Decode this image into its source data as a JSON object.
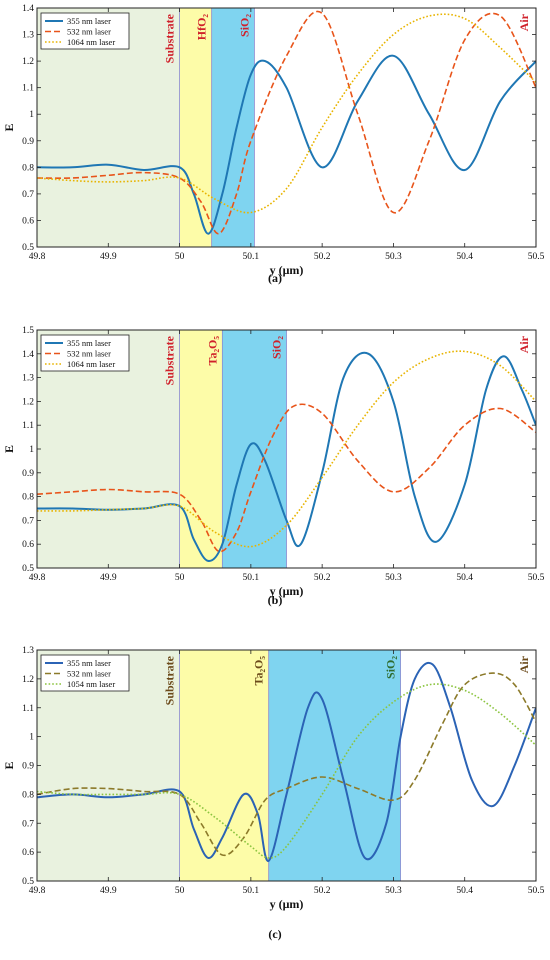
{
  "colors": {
    "laser355": "#1f77b4",
    "laser532": "#e8541a",
    "laser532_alt": "#8c7a2a",
    "laser1064": "#e8b400",
    "substrate_bg": "#e9f2df",
    "layer1_bg": "#fdfca8",
    "sio2_bg": "#7fd4f0",
    "region_text_red": "#d0202a",
    "region_text_dark": "#6b4a1a"
  },
  "chart_data": [
    {
      "type": "line",
      "panel_label": "(a)",
      "xlabel": "y (μm)",
      "ylabel": "E",
      "xlim": [
        49.8,
        50.5
      ],
      "ylim": [
        0.5,
        1.4
      ],
      "x_ticks": [
        "49.8",
        "49.9",
        "50",
        "50.1",
        "50.2",
        "50.3",
        "50.4",
        "50.5"
      ],
      "y_ticks": [
        "0.5",
        "0.6",
        "0.7",
        "0.8",
        "0.9",
        "1",
        "1.1",
        "1.2",
        "1.3",
        "1.4"
      ],
      "regions": [
        {
          "name": "Substrate",
          "label": "Substrate",
          "start": 49.8,
          "end": 50.0,
          "color": "#e9f2df",
          "text_color": "#d0202a"
        },
        {
          "name": "HfO2",
          "label": "HfO₂",
          "start": 50.0,
          "end": 50.045,
          "color": "#fdfca8",
          "text_color": "#d0202a"
        },
        {
          "name": "SiO2",
          "label": "SiO₂",
          "start": 50.045,
          "end": 50.105,
          "color": "#7fd4f0",
          "text_color": "#d0202a"
        },
        {
          "name": "Air",
          "label": "Air",
          "start": 50.105,
          "end": 50.5,
          "color": "#ffffff",
          "text_color": "#d0202a"
        }
      ],
      "legend": {
        "placement": "top-left"
      },
      "series": [
        {
          "name": "355 nm laser",
          "style": "solid",
          "color": "#1f77b4",
          "x": [
            49.8,
            49.85,
            49.9,
            49.95,
            50.0,
            50.02,
            50.04,
            50.06,
            50.08,
            50.1,
            50.12,
            50.15,
            50.2,
            50.25,
            50.3,
            50.35,
            50.4,
            50.45,
            50.5
          ],
          "y": [
            0.8,
            0.8,
            0.81,
            0.79,
            0.8,
            0.7,
            0.55,
            0.7,
            0.95,
            1.15,
            1.2,
            1.1,
            0.8,
            1.05,
            1.22,
            1.0,
            0.79,
            1.05,
            1.2
          ]
        },
        {
          "name": "532 nm laser",
          "style": "dashed",
          "color": "#e8541a",
          "x": [
            49.8,
            49.85,
            49.9,
            49.95,
            50.0,
            50.03,
            50.055,
            50.08,
            50.1,
            50.15,
            50.2,
            50.25,
            50.3,
            50.35,
            50.4,
            50.45,
            50.5
          ],
          "y": [
            0.76,
            0.76,
            0.77,
            0.78,
            0.76,
            0.67,
            0.55,
            0.7,
            0.9,
            1.22,
            1.38,
            1.0,
            0.63,
            0.9,
            1.28,
            1.37,
            1.1
          ]
        },
        {
          "name": "1064 nm laser",
          "style": "dotted",
          "color": "#e8b400",
          "x": [
            49.8,
            49.85,
            49.9,
            49.95,
            50.0,
            50.05,
            50.1,
            50.15,
            50.2,
            50.25,
            50.3,
            50.35,
            50.4,
            50.45,
            50.5
          ],
          "y": [
            0.76,
            0.75,
            0.745,
            0.75,
            0.76,
            0.68,
            0.63,
            0.72,
            0.95,
            1.15,
            1.3,
            1.37,
            1.36,
            1.25,
            1.12
          ]
        }
      ]
    },
    {
      "type": "line",
      "panel_label": "(b)",
      "xlabel": "y (μm)",
      "ylabel": "E",
      "xlim": [
        49.8,
        50.5
      ],
      "ylim": [
        0.5,
        1.5
      ],
      "x_ticks": [
        "49.8",
        "49.9",
        "50",
        "50.1",
        "50.2",
        "50.3",
        "50.4",
        "50.5"
      ],
      "y_ticks": [
        "0.5",
        "0.6",
        "0.7",
        "0.8",
        "0.9",
        "1",
        "1.1",
        "1.2",
        "1.3",
        "1.4",
        "1.5"
      ],
      "regions": [
        {
          "name": "Substrate",
          "label": "Substrate",
          "start": 49.8,
          "end": 50.0,
          "color": "#e9f2df",
          "text_color": "#d0202a"
        },
        {
          "name": "Ta2O5",
          "label": "Ta₂O₅",
          "start": 50.0,
          "end": 50.06,
          "color": "#fdfca8",
          "text_color": "#d0202a"
        },
        {
          "name": "SiO2",
          "label": "SiO₂",
          "start": 50.06,
          "end": 50.15,
          "color": "#7fd4f0",
          "text_color": "#d0202a"
        },
        {
          "name": "Air",
          "label": "Air",
          "start": 50.15,
          "end": 50.5,
          "color": "#ffffff",
          "text_color": "#d0202a"
        }
      ],
      "legend": {
        "placement": "top-left"
      },
      "series": [
        {
          "name": "355 nm laser",
          "style": "solid",
          "color": "#1f77b4",
          "x": [
            49.8,
            49.85,
            49.9,
            49.95,
            50.0,
            50.02,
            50.04,
            50.06,
            50.08,
            50.1,
            50.12,
            50.15,
            50.17,
            50.2,
            50.23,
            50.265,
            50.3,
            50.33,
            50.36,
            50.4,
            50.43,
            50.455,
            50.48,
            50.5
          ],
          "y": [
            0.75,
            0.75,
            0.745,
            0.75,
            0.76,
            0.62,
            0.53,
            0.6,
            0.85,
            1.02,
            0.95,
            0.7,
            0.6,
            0.9,
            1.3,
            1.4,
            1.2,
            0.8,
            0.61,
            0.85,
            1.25,
            1.39,
            1.25,
            1.1
          ]
        },
        {
          "name": "532 nm laser",
          "style": "dashed",
          "color": "#e8541a",
          "x": [
            49.8,
            49.85,
            49.9,
            49.95,
            50.0,
            50.03,
            50.055,
            50.08,
            50.1,
            50.13,
            50.16,
            50.2,
            50.25,
            50.3,
            50.35,
            50.4,
            50.45,
            50.5
          ],
          "y": [
            0.81,
            0.82,
            0.83,
            0.82,
            0.81,
            0.7,
            0.57,
            0.65,
            0.82,
            1.05,
            1.18,
            1.15,
            0.95,
            0.82,
            0.92,
            1.1,
            1.17,
            1.07
          ]
        },
        {
          "name": "1064 nm laser",
          "style": "dotted",
          "color": "#e8b400",
          "x": [
            49.8,
            49.85,
            49.9,
            49.95,
            50.0,
            50.05,
            50.1,
            50.15,
            50.2,
            50.25,
            50.3,
            50.35,
            50.4,
            50.45,
            50.5
          ],
          "y": [
            0.74,
            0.74,
            0.745,
            0.75,
            0.76,
            0.65,
            0.59,
            0.68,
            0.88,
            1.1,
            1.28,
            1.38,
            1.41,
            1.35,
            1.2
          ]
        }
      ]
    },
    {
      "type": "line",
      "panel_label": "(c)",
      "xlabel": "y (μm)",
      "ylabel": "E",
      "xlim": [
        49.8,
        50.5
      ],
      "ylim": [
        0.5,
        1.3
      ],
      "x_ticks": [
        "49.8",
        "49.9",
        "50",
        "50.1",
        "50.2",
        "50.3",
        "50.4",
        "50.5"
      ],
      "y_ticks": [
        "0.5",
        "0.6",
        "0.7",
        "0.8",
        "0.9",
        "1",
        "1.1",
        "1.2",
        "1.3"
      ],
      "regions": [
        {
          "name": "Substrate",
          "label": "Substrate",
          "start": 49.8,
          "end": 50.0,
          "color": "#e9f2df",
          "text_color": "#6b4a1a"
        },
        {
          "name": "Ta2O5",
          "label": "Ta₂O₅",
          "start": 50.0,
          "end": 50.125,
          "color": "#fdfca8",
          "text_color": "#6b4a1a"
        },
        {
          "name": "SiO2",
          "label": "SiO₂",
          "start": 50.125,
          "end": 50.31,
          "color": "#7fd4f0",
          "text_color": "#2e6b2e"
        },
        {
          "name": "Air",
          "label": "Air",
          "start": 50.31,
          "end": 50.5,
          "color": "#ffffff",
          "text_color": "#6b4a1a"
        }
      ],
      "legend": {
        "placement": "top-left"
      },
      "series": [
        {
          "name": "355 nm laser",
          "style": "solid",
          "color": "#2b63b5",
          "x": [
            49.8,
            49.85,
            49.9,
            49.95,
            50.0,
            50.02,
            50.04,
            50.06,
            50.09,
            50.11,
            50.125,
            50.15,
            50.18,
            50.2,
            50.23,
            50.26,
            50.29,
            50.31,
            50.33,
            50.355,
            50.38,
            50.41,
            50.44,
            50.47,
            50.5
          ],
          "y": [
            0.79,
            0.8,
            0.79,
            0.8,
            0.81,
            0.68,
            0.58,
            0.65,
            0.8,
            0.73,
            0.57,
            0.8,
            1.1,
            1.13,
            0.85,
            0.58,
            0.7,
            1.0,
            1.2,
            1.25,
            1.1,
            0.85,
            0.76,
            0.9,
            1.1
          ]
        },
        {
          "name": "532 nm laser",
          "style": "dashed",
          "color": "#8c7a2a",
          "x": [
            49.8,
            49.85,
            49.9,
            49.95,
            50.0,
            50.03,
            50.06,
            50.09,
            50.12,
            50.15,
            50.2,
            50.25,
            50.3,
            50.33,
            50.37,
            50.4,
            50.44,
            50.47,
            50.5
          ],
          "y": [
            0.8,
            0.82,
            0.82,
            0.81,
            0.8,
            0.7,
            0.59,
            0.65,
            0.78,
            0.82,
            0.86,
            0.82,
            0.78,
            0.85,
            1.05,
            1.18,
            1.22,
            1.18,
            1.05
          ]
        },
        {
          "name": "1054 nm laser",
          "style": "dotted",
          "color": "#8bc43f",
          "x": [
            49.8,
            49.85,
            49.9,
            49.95,
            50.0,
            50.05,
            50.1,
            50.125,
            50.15,
            50.2,
            50.25,
            50.3,
            50.35,
            50.4,
            50.45,
            50.5
          ],
          "y": [
            0.81,
            0.8,
            0.8,
            0.8,
            0.8,
            0.72,
            0.62,
            0.58,
            0.62,
            0.8,
            1.0,
            1.12,
            1.18,
            1.16,
            1.08,
            0.97
          ]
        }
      ]
    }
  ]
}
